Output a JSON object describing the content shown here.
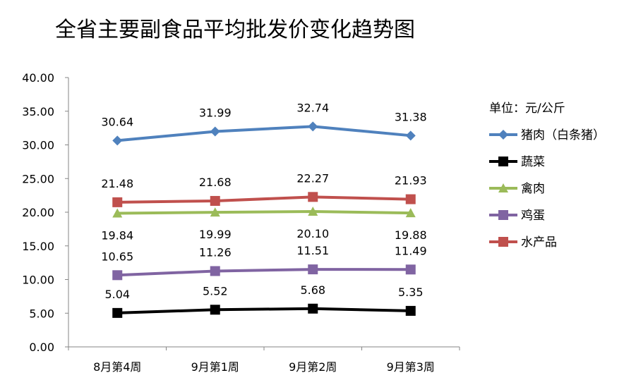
{
  "chart_data": {
    "type": "line",
    "title": "全省主要副食品平均批发价变化趋势图",
    "xlabel": "",
    "ylabel": "",
    "unit_label": "单位：元/公斤",
    "categories": [
      "8月第4周",
      "9月第1周",
      "9月第2周",
      "9月第3周"
    ],
    "ylim": [
      0,
      40
    ],
    "yticks": [
      "0.00",
      "5.00",
      "10.00",
      "15.00",
      "20.00",
      "25.00",
      "30.00",
      "35.00",
      "40.00"
    ],
    "grid": false,
    "legend_position": "right",
    "series": [
      {
        "name": "猪肉（白条猪）",
        "values": [
          30.64,
          31.99,
          32.74,
          31.38
        ],
        "labels": [
          "30.64",
          "31.99",
          "32.74",
          "31.38"
        ],
        "label_position": "above",
        "color": "#4F81BD",
        "marker": "diamond"
      },
      {
        "name": "蔬菜",
        "values": [
          5.04,
          5.52,
          5.68,
          5.35
        ],
        "labels": [
          "5.04",
          "5.52",
          "5.68",
          "5.35"
        ],
        "label_position": "above",
        "color": "#000000",
        "marker": "square"
      },
      {
        "name": "禽肉",
        "values": [
          19.84,
          19.99,
          20.1,
          19.88
        ],
        "labels": [
          "19.84",
          "19.99",
          "20.10",
          "19.88"
        ],
        "label_position": "below",
        "color": "#9BBB59",
        "marker": "triangle"
      },
      {
        "name": "鸡蛋",
        "values": [
          10.65,
          11.26,
          11.51,
          11.49
        ],
        "labels": [
          "10.65",
          "11.26",
          "11.51",
          "11.49"
        ],
        "label_position": "above",
        "color": "#8064A2",
        "marker": "square"
      },
      {
        "name": "水产品",
        "values": [
          21.48,
          21.68,
          22.27,
          21.93
        ],
        "labels": [
          "21.48",
          "21.68",
          "22.27",
          "21.93"
        ],
        "label_position": "above",
        "color": "#C0504D",
        "marker": "square"
      }
    ]
  }
}
